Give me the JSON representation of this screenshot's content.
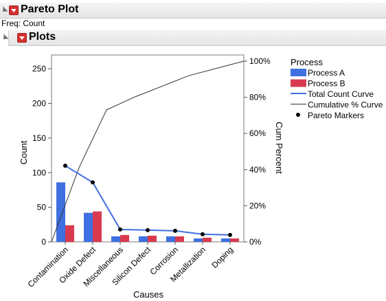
{
  "header": {
    "title": "Pareto Plot",
    "freq": "Freq: Count"
  },
  "subheader": {
    "title": "Plots"
  },
  "legend": {
    "title": "Process",
    "items": [
      {
        "label": "Process A",
        "kind": "bar",
        "color": "#3f6fe0"
      },
      {
        "label": "Process B",
        "kind": "bar",
        "color": "#d93a4f"
      },
      {
        "label": "Total Count Curve",
        "kind": "line",
        "color": "#3f6fe0"
      },
      {
        "label": "Cumulative % Curve",
        "kind": "line",
        "color": "#333333"
      },
      {
        "label": "Pareto Markers",
        "kind": "dot",
        "color": "#000000"
      }
    ]
  },
  "chart_data": {
    "type": "bar",
    "xlabel": "Causes",
    "ylabel": "Count",
    "y2label": "Cum Percent",
    "ylim": [
      0,
      270
    ],
    "y_ticks": [
      0,
      50,
      100,
      150,
      200,
      250
    ],
    "y2_ticks": [
      "0%",
      "20%",
      "40%",
      "60%",
      "80%",
      "100%"
    ],
    "categories": [
      "Contamination",
      "Oxide Defect",
      "Miscellaneous",
      "Silicon Defect",
      "Corrosion",
      "Metallization",
      "Doping"
    ],
    "series": [
      {
        "name": "Process A",
        "values": [
          86,
          42,
          8,
          8,
          8,
          5,
          5
        ]
      },
      {
        "name": "Process B",
        "values": [
          24,
          44,
          10,
          9,
          8,
          6,
          5
        ]
      }
    ],
    "total_count_curve": [
      110,
      86,
      18,
      17,
      16,
      11,
      10
    ],
    "cumulative_percent": [
      41,
      73,
      80,
      86,
      92,
      96,
      100
    ],
    "colors": {
      "process_a": "#3f6fe0",
      "process_b": "#d93a4f",
      "total_curve": "#3f6fe0",
      "cum_curve": "#333333"
    }
  }
}
